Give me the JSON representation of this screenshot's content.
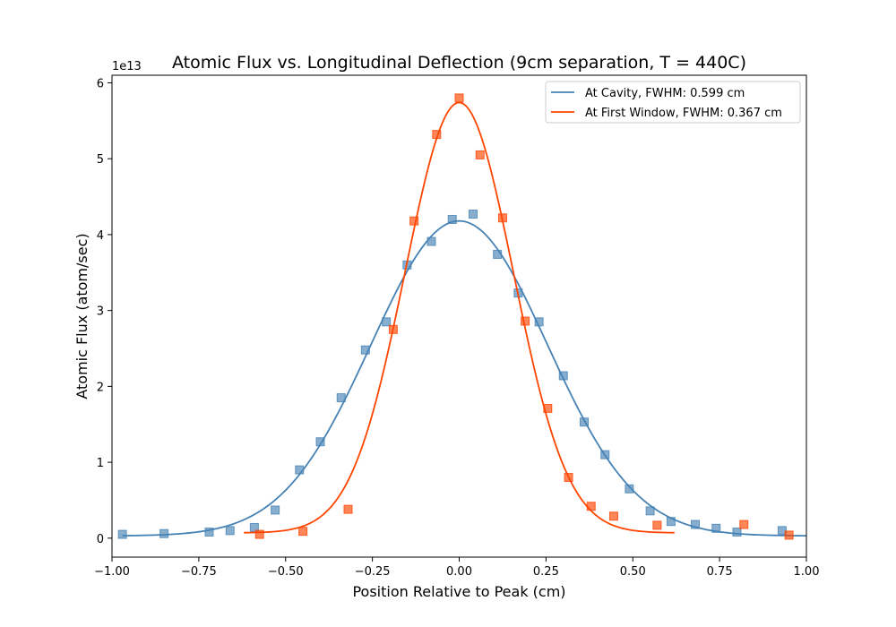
{
  "chart_data": {
    "type": "scatter",
    "title": "Atomic Flux vs. Longitudinal Deflection (9cm separation, T = 440C)",
    "xlabel": "Position Relative to Peak (cm)",
    "ylabel": "Atomic Flux (atom/sec)",
    "y_offset_label": "1e13",
    "xlim": [
      -1.0,
      1.0
    ],
    "ylim": [
      -0.25,
      6.1
    ],
    "x_ticks": [
      -1.0,
      -0.75,
      -0.5,
      -0.25,
      0.0,
      0.25,
      0.5,
      0.75,
      1.0
    ],
    "x_tick_labels": [
      "−1.00",
      "−0.75",
      "−0.50",
      "−0.25",
      "0.00",
      "0.25",
      "0.50",
      "0.75",
      "1.00"
    ],
    "y_ticks": [
      0,
      1,
      2,
      3,
      4,
      5,
      6
    ],
    "y_tick_labels": [
      "0",
      "1",
      "2",
      "3",
      "4",
      "5",
      "6"
    ],
    "grid": false,
    "legend_position": "top-right",
    "series": [
      {
        "name": "At Cavity, FWHM: 0.599 cm",
        "color": "#4682b4",
        "curve": {
          "amplitude": 4.15,
          "center": 0.0,
          "fwhm": 0.599,
          "offset": 0.03,
          "x_range": [
            -0.97,
            1.0
          ]
        },
        "points": {
          "x": [
            -0.97,
            -0.85,
            -0.72,
            -0.66,
            -0.59,
            -0.53,
            -0.46,
            -0.4,
            -0.34,
            -0.27,
            -0.21,
            -0.15,
            -0.08,
            -0.02,
            0.04,
            0.11,
            0.17,
            0.23,
            0.3,
            0.36,
            0.42,
            0.49,
            0.55,
            0.61,
            0.68,
            0.74,
            0.8,
            0.93
          ],
          "y": [
            0.05,
            0.06,
            0.08,
            0.1,
            0.14,
            0.37,
            0.9,
            1.27,
            1.85,
            2.48,
            2.85,
            3.6,
            3.91,
            4.2,
            4.27,
            3.74,
            3.23,
            2.85,
            2.14,
            1.53,
            1.1,
            0.65,
            0.36,
            0.22,
            0.18,
            0.13,
            0.08,
            0.1
          ]
        }
      },
      {
        "name": "At First Window, FWHM: 0.367 cm",
        "color": "#ff4500",
        "curve": {
          "amplitude": 5.67,
          "center": 0.0,
          "fwhm": 0.367,
          "offset": 0.07,
          "x_range": [
            -0.62,
            0.62
          ]
        },
        "points": {
          "x": [
            -0.575,
            -0.45,
            -0.32,
            -0.19,
            -0.13,
            -0.065,
            0.0,
            0.06,
            0.125,
            0.19,
            0.255,
            0.315,
            0.38,
            0.445,
            0.57,
            0.82,
            0.95
          ],
          "y": [
            0.05,
            0.09,
            0.38,
            2.75,
            4.18,
            5.32,
            5.8,
            5.05,
            4.22,
            2.86,
            1.71,
            0.8,
            0.42,
            0.29,
            0.17,
            0.18,
            0.04
          ]
        }
      }
    ]
  }
}
